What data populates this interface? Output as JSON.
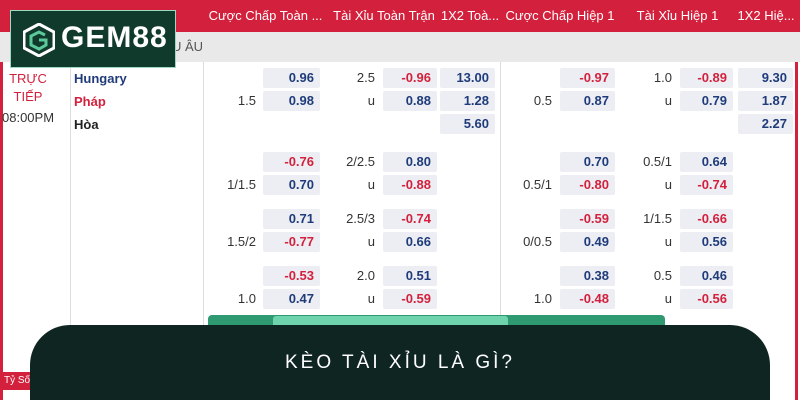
{
  "logo": "GEM88",
  "header": {
    "columns": [
      "Cược Chấp Toàn ...",
      "Tài Xỉu Toàn Trận",
      "1X2 Toà...",
      "Cược Chấp Hiệp 1",
      "Tài Xỉu Hiệp 1",
      "1X2 Hiệ..."
    ]
  },
  "subheader": "U ÂU",
  "match": {
    "status": "TRỰC TIẾP",
    "time": "08:00PM",
    "teams": [
      "Hungary",
      "Pháp",
      "Hòa"
    ]
  },
  "groups": [
    {
      "rows": [
        {
          "ft_hdp_odds": "0.96",
          "ft_ou_line": "2.5",
          "ft_ou_odds": "-0.96",
          "ft_1x2": "13.00",
          "h1_hdp_odds": "-0.97",
          "h1_ou_line": "1.0",
          "h1_ou_odds": "-0.89",
          "h1_1x2": "9.30"
        },
        {
          "ft_hdp_line": "1.5",
          "ft_hdp_odds": "0.98",
          "ft_ou_line": "u",
          "ft_ou_odds": "0.88",
          "ft_1x2": "1.28",
          "h1_hdp_line": "0.5",
          "h1_hdp_odds": "0.87",
          "h1_ou_line": "u",
          "h1_ou_odds": "0.79",
          "h1_1x2": "1.87"
        },
        {
          "ft_1x2": "5.60",
          "h1_1x2": "2.27"
        }
      ]
    },
    {
      "rows": [
        {
          "ft_hdp_odds": "-0.76",
          "ft_ou_line": "2/2.5",
          "ft_ou_odds": "0.80",
          "h1_hdp_odds": "0.70",
          "h1_ou_line": "0.5/1",
          "h1_ou_odds": "0.64"
        },
        {
          "ft_hdp_line": "1/1.5",
          "ft_hdp_odds": "0.70",
          "ft_ou_line": "u",
          "ft_ou_odds": "-0.88",
          "h1_hdp_line": "0.5/1",
          "h1_hdp_odds": "-0.80",
          "h1_ou_line": "u",
          "h1_ou_odds": "-0.74"
        }
      ]
    },
    {
      "rows": [
        {
          "ft_hdp_odds": "0.71",
          "ft_ou_line": "2.5/3",
          "ft_ou_odds": "-0.74",
          "h1_hdp_odds": "-0.59",
          "h1_ou_line": "1/1.5",
          "h1_ou_odds": "-0.66"
        },
        {
          "ft_hdp_line": "1.5/2",
          "ft_hdp_odds": "-0.77",
          "ft_ou_line": "u",
          "ft_ou_odds": "0.66",
          "h1_hdp_line": "0/0.5",
          "h1_hdp_odds": "0.49",
          "h1_ou_line": "u",
          "h1_ou_odds": "0.56"
        }
      ]
    },
    {
      "rows": [
        {
          "ft_hdp_odds": "-0.53",
          "ft_ou_line": "2.0",
          "ft_ou_odds": "0.51",
          "h1_hdp_odds": "0.38",
          "h1_ou_line": "0.5",
          "h1_ou_odds": "0.46"
        },
        {
          "ft_hdp_line": "1.0",
          "ft_hdp_odds": "0.47",
          "ft_ou_line": "u",
          "ft_ou_odds": "-0.59",
          "h1_hdp_line": "1.0",
          "h1_hdp_odds": "-0.48",
          "h1_ou_line": "u",
          "h1_ou_odds": "-0.56"
        }
      ]
    }
  ],
  "footer_label": "Tỷ Số",
  "banner": "KÈO TÀI XỈU LÀ GÌ?"
}
